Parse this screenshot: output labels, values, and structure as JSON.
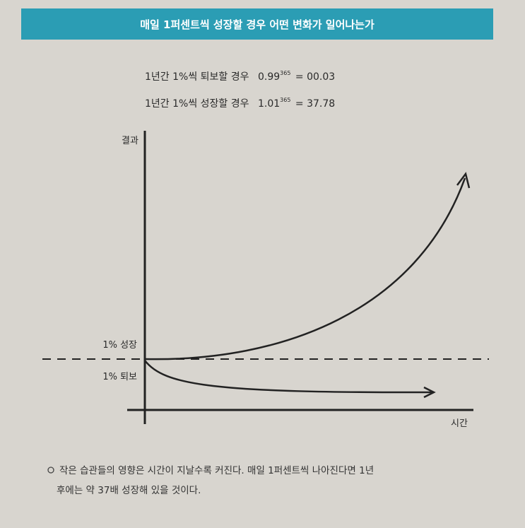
{
  "header": {
    "title": "매일 1퍼센트씩 성장할 경우 어떤 변화가 일어나는가"
  },
  "formulas": [
    {
      "label": "1년간 1%씩 퇴보할 경우",
      "base": "0.99",
      "exponent": "365",
      "equals": "=",
      "result": "00.03"
    },
    {
      "label": "1년간 1%씩 성장할 경우",
      "base": "1.01",
      "exponent": "365",
      "equals": "=",
      "result": "37.78"
    }
  ],
  "diagram": {
    "y_axis_label": "결과",
    "x_axis_label": "시간",
    "growth_label": "1% 성장",
    "decline_label": "1% 퇴보"
  },
  "caption": {
    "lines": [
      "작은 습관들의 영향은 시간이 지날수록 커진다. 매일 1퍼센트씩 나아진다면 1년",
      "후에는 약 37배 성장해 있을 것이다."
    ]
  }
}
